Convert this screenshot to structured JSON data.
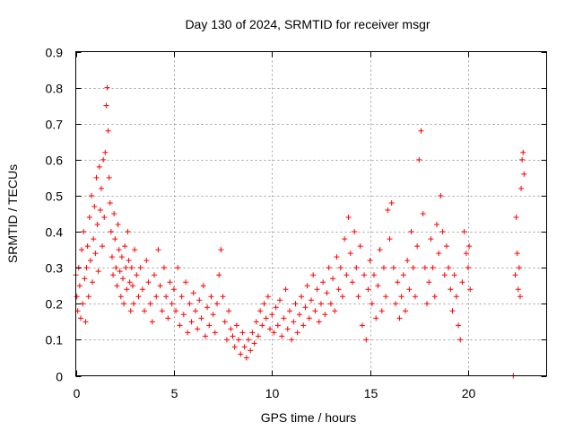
{
  "chart_data": {
    "type": "scatter",
    "title": "Day 130 of 2024, SRMTID for receiver msgr",
    "xlabel": "GPS time / hours",
    "ylabel": "SRMTID / TECUs",
    "xlim": [
      0,
      24
    ],
    "ylim": [
      0,
      0.9
    ],
    "xticks": [
      0,
      5,
      10,
      15,
      20
    ],
    "xtick_labels": [
      "0",
      "5",
      "10",
      "15",
      "20"
    ],
    "yticks": [
      0,
      0.1,
      0.2,
      0.3,
      0.4,
      0.5,
      0.6,
      0.7,
      0.8,
      0.9
    ],
    "ytick_labels": [
      "0",
      "0.1",
      "0.2",
      "0.3",
      "0.4",
      "0.5",
      "0.6",
      "0.7",
      "0.8",
      "0.9"
    ],
    "grid": true,
    "marker": "+",
    "series": [
      {
        "name": "SRMTID",
        "color": "#ff0000",
        "points": [
          [
            0.0,
            0.28
          ],
          [
            0.05,
            0.22
          ],
          [
            0.1,
            0.18
          ],
          [
            0.15,
            0.3
          ],
          [
            0.2,
            0.25
          ],
          [
            0.25,
            0.16
          ],
          [
            0.3,
            0.35
          ],
          [
            0.35,
            0.2
          ],
          [
            0.4,
            0.4
          ],
          [
            0.45,
            0.27
          ],
          [
            0.5,
            0.15
          ],
          [
            0.55,
            0.3
          ],
          [
            0.6,
            0.36
          ],
          [
            0.65,
            0.22
          ],
          [
            0.7,
            0.44
          ],
          [
            0.75,
            0.32
          ],
          [
            0.8,
            0.5
          ],
          [
            0.85,
            0.26
          ],
          [
            0.9,
            0.38
          ],
          [
            0.95,
            0.47
          ],
          [
            1.0,
            0.34
          ],
          [
            1.05,
            0.55
          ],
          [
            1.1,
            0.42
          ],
          [
            1.15,
            0.29
          ],
          [
            1.2,
            0.58
          ],
          [
            1.25,
            0.46
          ],
          [
            1.3,
            0.52
          ],
          [
            1.35,
            0.36
          ],
          [
            1.4,
            0.6
          ],
          [
            1.45,
            0.44
          ],
          [
            1.5,
            0.62
          ],
          [
            1.55,
            0.75
          ],
          [
            1.6,
            0.8
          ],
          [
            1.65,
            0.68
          ],
          [
            1.7,
            0.55
          ],
          [
            1.75,
            0.48
          ],
          [
            1.8,
            0.4
          ],
          [
            1.85,
            0.33
          ],
          [
            1.9,
            0.28
          ],
          [
            1.95,
            0.45
          ],
          [
            2.0,
            0.38
          ],
          [
            2.05,
            0.3
          ],
          [
            2.1,
            0.25
          ],
          [
            2.15,
            0.42
          ],
          [
            2.2,
            0.35
          ],
          [
            2.25,
            0.29
          ],
          [
            2.3,
            0.22
          ],
          [
            2.35,
            0.33
          ],
          [
            2.4,
            0.27
          ],
          [
            2.45,
            0.2
          ],
          [
            2.5,
            0.36
          ],
          [
            2.55,
            0.3
          ],
          [
            2.6,
            0.24
          ],
          [
            2.65,
            0.4
          ],
          [
            2.7,
            0.32
          ],
          [
            2.75,
            0.26
          ],
          [
            2.8,
            0.18
          ],
          [
            2.85,
            0.3
          ],
          [
            2.9,
            0.25
          ],
          [
            2.95,
            0.2
          ],
          [
            3.0,
            0.35
          ],
          [
            3.1,
            0.28
          ],
          [
            3.2,
            0.22
          ],
          [
            3.3,
            0.3
          ],
          [
            3.4,
            0.24
          ],
          [
            3.5,
            0.18
          ],
          [
            3.6,
            0.32
          ],
          [
            3.7,
            0.26
          ],
          [
            3.8,
            0.2
          ],
          [
            3.9,
            0.15
          ],
          [
            4.0,
            0.28
          ],
          [
            4.1,
            0.22
          ],
          [
            4.2,
            0.35
          ],
          [
            4.3,
            0.25
          ],
          [
            4.4,
            0.18
          ],
          [
            4.5,
            0.3
          ],
          [
            4.6,
            0.22
          ],
          [
            4.7,
            0.16
          ],
          [
            4.8,
            0.26
          ],
          [
            4.9,
            0.2
          ],
          [
            5.0,
            0.24
          ],
          [
            5.1,
            0.18
          ],
          [
            5.2,
            0.3
          ],
          [
            5.3,
            0.14
          ],
          [
            5.4,
            0.22
          ],
          [
            5.5,
            0.17
          ],
          [
            5.6,
            0.26
          ],
          [
            5.7,
            0.12
          ],
          [
            5.8,
            0.2
          ],
          [
            5.9,
            0.15
          ],
          [
            6.0,
            0.23
          ],
          [
            6.1,
            0.18
          ],
          [
            6.2,
            0.13
          ],
          [
            6.3,
            0.21
          ],
          [
            6.4,
            0.16
          ],
          [
            6.5,
            0.25
          ],
          [
            6.6,
            0.11
          ],
          [
            6.7,
            0.19
          ],
          [
            6.8,
            0.14
          ],
          [
            6.9,
            0.22
          ],
          [
            7.0,
            0.17
          ],
          [
            7.1,
            0.12
          ],
          [
            7.2,
            0.2
          ],
          [
            7.3,
            0.28
          ],
          [
            7.4,
            0.35
          ],
          [
            7.5,
            0.22
          ],
          [
            7.6,
            0.15
          ],
          [
            7.7,
            0.1
          ],
          [
            7.8,
            0.18
          ],
          [
            7.9,
            0.13
          ],
          [
            8.0,
            0.11
          ],
          [
            8.1,
            0.08
          ],
          [
            8.2,
            0.14
          ],
          [
            8.3,
            0.1
          ],
          [
            8.4,
            0.06
          ],
          [
            8.5,
            0.12
          ],
          [
            8.6,
            0.08
          ],
          [
            8.7,
            0.05
          ],
          [
            8.8,
            0.1
          ],
          [
            8.9,
            0.07
          ],
          [
            9.0,
            0.12
          ],
          [
            9.1,
            0.09
          ],
          [
            9.2,
            0.15
          ],
          [
            9.3,
            0.11
          ],
          [
            9.4,
            0.18
          ],
          [
            9.5,
            0.14
          ],
          [
            9.6,
            0.2
          ],
          [
            9.7,
            0.16
          ],
          [
            9.8,
            0.22
          ],
          [
            9.9,
            0.13
          ],
          [
            10.0,
            0.17
          ],
          [
            10.1,
            0.12
          ],
          [
            10.2,
            0.19
          ],
          [
            10.3,
            0.14
          ],
          [
            10.4,
            0.21
          ],
          [
            10.5,
            0.11
          ],
          [
            10.6,
            0.16
          ],
          [
            10.7,
            0.24
          ],
          [
            10.8,
            0.13
          ],
          [
            10.9,
            0.18
          ],
          [
            11.0,
            0.1
          ],
          [
            11.1,
            0.15
          ],
          [
            11.2,
            0.2
          ],
          [
            11.3,
            0.12
          ],
          [
            11.4,
            0.17
          ],
          [
            11.5,
            0.22
          ],
          [
            11.6,
            0.14
          ],
          [
            11.7,
            0.19
          ],
          [
            11.8,
            0.25
          ],
          [
            11.9,
            0.16
          ],
          [
            12.0,
            0.21
          ],
          [
            12.1,
            0.28
          ],
          [
            12.2,
            0.18
          ],
          [
            12.3,
            0.24
          ],
          [
            12.4,
            0.15
          ],
          [
            12.5,
            0.2
          ],
          [
            12.6,
            0.26
          ],
          [
            12.7,
            0.17
          ],
          [
            12.8,
            0.23
          ],
          [
            12.9,
            0.3
          ],
          [
            13.0,
            0.2
          ],
          [
            13.1,
            0.27
          ],
          [
            13.2,
            0.18
          ],
          [
            13.3,
            0.33
          ],
          [
            13.4,
            0.24
          ],
          [
            13.5,
            0.3
          ],
          [
            13.6,
            0.22
          ],
          [
            13.7,
            0.38
          ],
          [
            13.8,
            0.28
          ],
          [
            13.9,
            0.44
          ],
          [
            14.0,
            0.34
          ],
          [
            14.1,
            0.26
          ],
          [
            14.2,
            0.4
          ],
          [
            14.3,
            0.3
          ],
          [
            14.4,
            0.22
          ],
          [
            14.5,
            0.36
          ],
          [
            14.6,
            0.14
          ],
          [
            14.7,
            0.28
          ],
          [
            14.8,
            0.1
          ],
          [
            14.9,
            0.24
          ],
          [
            15.0,
            0.32
          ],
          [
            15.1,
            0.2
          ],
          [
            15.2,
            0.28
          ],
          [
            15.3,
            0.16
          ],
          [
            15.4,
            0.25
          ],
          [
            15.5,
            0.35
          ],
          [
            15.6,
            0.18
          ],
          [
            15.7,
            0.3
          ],
          [
            15.8,
            0.22
          ],
          [
            15.9,
            0.46
          ],
          [
            16.0,
            0.38
          ],
          [
            16.1,
            0.48
          ],
          [
            16.2,
            0.3
          ],
          [
            16.3,
            0.2
          ],
          [
            16.4,
            0.26
          ],
          [
            16.5,
            0.16
          ],
          [
            16.6,
            0.22
          ],
          [
            16.7,
            0.28
          ],
          [
            16.8,
            0.18
          ],
          [
            16.9,
            0.32
          ],
          [
            17.0,
            0.24
          ],
          [
            17.1,
            0.4
          ],
          [
            17.2,
            0.3
          ],
          [
            17.3,
            0.22
          ],
          [
            17.4,
            0.36
          ],
          [
            17.5,
            0.6
          ],
          [
            17.6,
            0.68
          ],
          [
            17.7,
            0.45
          ],
          [
            17.8,
            0.3
          ],
          [
            17.9,
            0.2
          ],
          [
            18.0,
            0.26
          ],
          [
            18.1,
            0.38
          ],
          [
            18.2,
            0.3
          ],
          [
            18.3,
            0.22
          ],
          [
            18.4,
            0.42
          ],
          [
            18.5,
            0.34
          ],
          [
            18.6,
            0.5
          ],
          [
            18.7,
            0.4
          ],
          [
            18.8,
            0.28
          ],
          [
            18.9,
            0.36
          ],
          [
            19.0,
            0.3
          ],
          [
            19.1,
            0.24
          ],
          [
            19.2,
            0.18
          ],
          [
            19.3,
            0.28
          ],
          [
            19.4,
            0.22
          ],
          [
            19.5,
            0.14
          ],
          [
            19.6,
            0.1
          ],
          [
            19.7,
            0.26
          ],
          [
            19.8,
            0.4
          ],
          [
            19.9,
            0.34
          ],
          [
            20.0,
            0.3
          ],
          [
            20.05,
            0.36
          ],
          [
            20.1,
            0.24
          ],
          [
            22.3,
            0.0
          ],
          [
            22.4,
            0.28
          ],
          [
            22.45,
            0.44
          ],
          [
            22.5,
            0.34
          ],
          [
            22.55,
            0.24
          ],
          [
            22.6,
            0.3
          ],
          [
            22.65,
            0.22
          ],
          [
            22.7,
            0.52
          ],
          [
            22.75,
            0.6
          ],
          [
            22.8,
            0.62
          ],
          [
            22.85,
            0.56
          ]
        ]
      }
    ]
  }
}
